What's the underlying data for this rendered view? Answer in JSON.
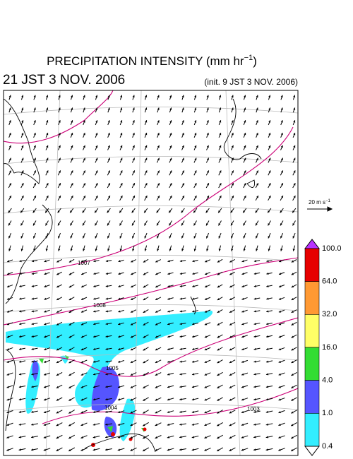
{
  "header": {
    "title": {
      "text": "PRECIPITATION INTENSITY (mm hr",
      "sup": "−1",
      "close": ")"
    },
    "valid_time": "21 JST 3 NOV. 2006",
    "init_time": "(init. 9 JST 3 NOV. 2006)"
  },
  "wind_legend": {
    "text": "20 m s",
    "sup": "−1"
  },
  "colorbar": {
    "labels": [
      "100.0",
      "64.0",
      "32.0",
      "16.0",
      "4.0",
      "1.0",
      "0.4"
    ],
    "colors": [
      "#e60000",
      "#ff9933",
      "#ffff66",
      "#33dd33",
      "#5555ff",
      "#33eeff"
    ],
    "over_color": "#b833ff",
    "under_color": "#ffffff"
  },
  "isobars": {
    "labels": [
      "1007",
      "1008",
      "1005",
      "1004",
      "1003"
    ]
  }
}
